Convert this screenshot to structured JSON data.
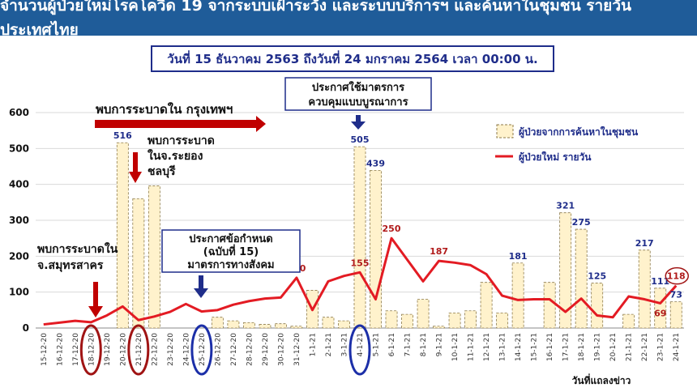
{
  "title": "จำนวนผู้ป่วยใหม่โรคโควิด 19 จากระบบเฝ้าระวัง และระบบบริการฯ และค้นหาในชุมชน รายวัน ประเทศไทย",
  "subtitle": "วันที่ 15 ธันวาคม  2563 ถึงวันที่ 24 มกราคม 2564 เวลา 00:00 น.",
  "annotations": {
    "bkk_outbreak": "พบการระบาดใน กรุงเทพฯ",
    "rayong_line1": "พบการระบาด",
    "rayong_line2": "ในจ.ระยอง",
    "rayong_line3": "ชลบุรี",
    "samut_line1": "พบการระบาดใน",
    "samut_line2": "จ.สมุทรสาคร",
    "decree_line1": "ประกาศข้อกำหนด",
    "decree_line2": "(ฉบับที่ 15)",
    "decree_line3": "มาตรการทางสังคม",
    "control_line1": "ประกาศใช้มาตรการ",
    "control_line2": "ควบคุมแบบบูรณาการ"
  },
  "chart_data": {
    "type": "bar",
    "xlabel": "วันที่แถลงข่าว",
    "ylim": [
      0,
      600
    ],
    "yticks": [
      0,
      100,
      200,
      300,
      400,
      500,
      600
    ],
    "grid": true,
    "legend_position": "right",
    "categories": [
      "15-12-20",
      "16-12-20",
      "17-12-20",
      "18-12-20",
      "19-12-20",
      "20-12-20",
      "21-12-20",
      "22-12-20",
      "23-12-20",
      "24-12-20",
      "25-12-20",
      "26-12-20",
      "27-12-20",
      "28-12-20",
      "29-12-20",
      "30-12-20",
      "31-12-20",
      "1-1-21",
      "2-1-21",
      "3-1-21",
      "4-1-21",
      "5-1-21",
      "6-1-21",
      "7-1-21",
      "8-1-21",
      "9-1-21",
      "10-1-21",
      "11-1-21",
      "12-1-21",
      "13-1-21",
      "14-1-21",
      "15-1-21",
      "16-1-21",
      "17-1-21",
      "18-1-21",
      "19-1-21",
      "20-1-21",
      "21-1-21",
      "22-1-21",
      "23-1-21",
      "24-1-21"
    ],
    "series": [
      {
        "name": "ผู้ป่วยจากการค้นหาในชุมชน",
        "type": "bar",
        "color": "#fff2cc",
        "values": [
          0,
          0,
          0,
          0,
          0,
          516,
          360,
          396,
          0,
          0,
          0,
          30,
          20,
          15,
          10,
          12,
          5,
          105,
          30,
          20,
          505,
          439,
          48,
          38,
          80,
          5,
          42,
          48,
          127,
          42,
          181,
          0,
          127,
          321,
          275,
          125,
          0,
          38,
          217,
          111,
          73
        ],
        "labels": {
          "5": "516",
          "20": "505",
          "21": "439",
          "30": "181",
          "33": "321",
          "34": "275",
          "35": "125",
          "38": "217",
          "39": "111",
          "40": "73"
        }
      },
      {
        "name": "ผู้ป่วยใหม่ รายวัน",
        "type": "line",
        "color": "#e31b23",
        "values": [
          10,
          15,
          20,
          16,
          35,
          60,
          22,
          32,
          45,
          67,
          46,
          50,
          65,
          75,
          82,
          85,
          140,
          50,
          130,
          145,
          155,
          80,
          250,
          190,
          130,
          187,
          182,
          175,
          150,
          90,
          78,
          80,
          80,
          45,
          82,
          35,
          30,
          88,
          80,
          69,
          118
        ],
        "labels": {
          "16": "140",
          "20": "155",
          "22": "250",
          "25": "187",
          "39": "69",
          "40": "118"
        }
      }
    ],
    "circled_categories": {
      "red": [
        "18-12-20",
        "21-12-20"
      ],
      "blue": [
        "25-12-20",
        "4-1-21"
      ]
    }
  }
}
